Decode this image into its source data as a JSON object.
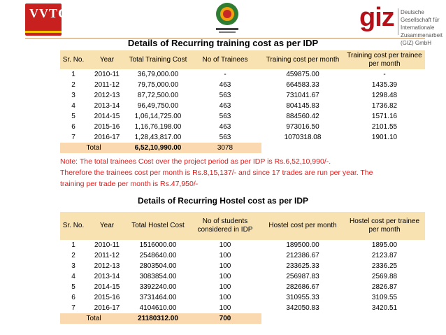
{
  "logos": {
    "left_text_1": "VVTC",
    "left_text_2": "",
    "giz_word": "giz",
    "giz_tagline": "Deutsche Gesellschaft für Internationale Zusammenarbeit (GIZ) GmbH"
  },
  "table1": {
    "title": "Details of Recurring training cost as per IDP",
    "headers": [
      "Sr. No.",
      "Year",
      "Total Training Cost",
      "No of Trainees",
      "Training cost per month",
      "Training cost per trainee per month"
    ],
    "rows": [
      [
        "1",
        "2010-11",
        "36,79,000.00",
        "-",
        "459875.00",
        "-"
      ],
      [
        "2",
        "2011-12",
        "79,75,000.00",
        "463",
        "664583.33",
        "1435.39"
      ],
      [
        "3",
        "2012-13",
        "87,72,500.00",
        "563",
        "731041.67",
        "1298.48"
      ],
      [
        "4",
        "2013-14",
        "96,49,750.00",
        "463",
        "804145.83",
        "1736.82"
      ],
      [
        "5",
        "2014-15",
        "1,06,14,725.00",
        "563",
        "884560.42",
        "1571.16"
      ],
      [
        "6",
        "2015-16",
        "1,16,76,198.00",
        "463",
        "973016.50",
        "2101.55"
      ],
      [
        "7",
        "2016-17",
        "1,28,43,817.00",
        "563",
        "1070318.08",
        "1901.10"
      ]
    ],
    "total_label": "Total",
    "total_cost": "6,52,10,990.00",
    "total_trainees": "3078"
  },
  "note_lines": [
    "Note: The total trainees Cost over the project period as per IDP is Rs.6,52,10,990/-.",
    "Therefore the trainees cost per month is Rs.8,15,137/- and since  17 trades are run per year. The",
    "training per trade per month is Rs.47,950/-"
  ],
  "table2": {
    "title": "Details of Recurring Hostel cost as per IDP",
    "headers": [
      "Sr. No.",
      "Year",
      "Total Hostel Cost",
      "No of students considered in IDP",
      "Hostel cost per month",
      "Hostel cost per trainee per month"
    ],
    "rows": [
      [
        "1",
        "2010-11",
        "1516000.00",
        "100",
        "189500.00",
        "1895.00"
      ],
      [
        "2",
        "2011-12",
        "2548640.00",
        "100",
        "212386.67",
        "2123.87"
      ],
      [
        "3",
        "2012-13",
        "2803504.00",
        "100",
        "233625.33",
        "2336.25"
      ],
      [
        "4",
        "2013-14",
        "3083854.00",
        "100",
        "256987.83",
        "2569.88"
      ],
      [
        "5",
        "2014-15",
        "3392240.00",
        "100",
        "282686.67",
        "2826.87"
      ],
      [
        "6",
        "2015-16",
        "3731464.00",
        "100",
        "310955.33",
        "3109.55"
      ],
      [
        "7",
        "2016-17",
        "4104610.00",
        "100",
        "342050.83",
        "3420.51"
      ]
    ],
    "total_label": "Total",
    "total_cost": "21180312.00",
    "total_students": "700"
  }
}
